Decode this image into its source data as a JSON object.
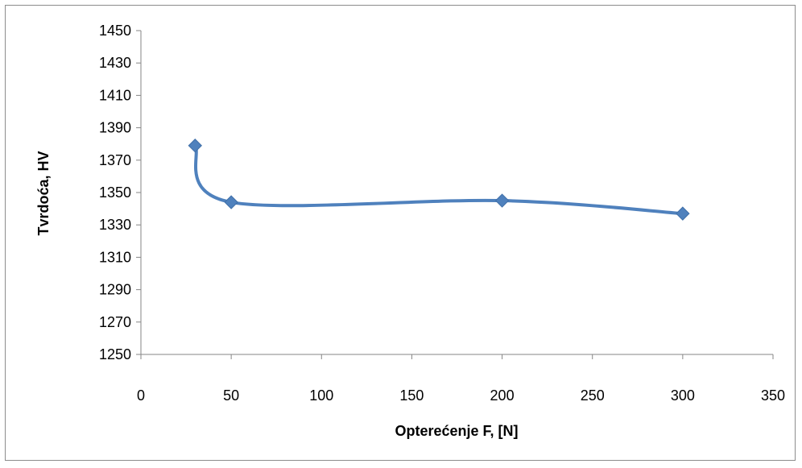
{
  "chart_data": {
    "type": "line",
    "title": "",
    "xlabel": "Opterećenje  F, [N]",
    "ylabel": "Tvrdoća, HV",
    "xlim": [
      0,
      350
    ],
    "ylim": [
      1250,
      1450
    ],
    "x_ticks": [
      0,
      50,
      100,
      150,
      200,
      250,
      300,
      350
    ],
    "y_ticks": [
      1250,
      1270,
      1290,
      1310,
      1330,
      1350,
      1370,
      1390,
      1410,
      1430,
      1450
    ],
    "grid": false,
    "legend": "none",
    "smoothed": true,
    "marker": "diamond",
    "color": "#4f81bd",
    "series": [
      {
        "x": [
          30,
          50,
          200,
          300
        ],
        "y": [
          1379,
          1344,
          1345,
          1337
        ]
      }
    ]
  }
}
